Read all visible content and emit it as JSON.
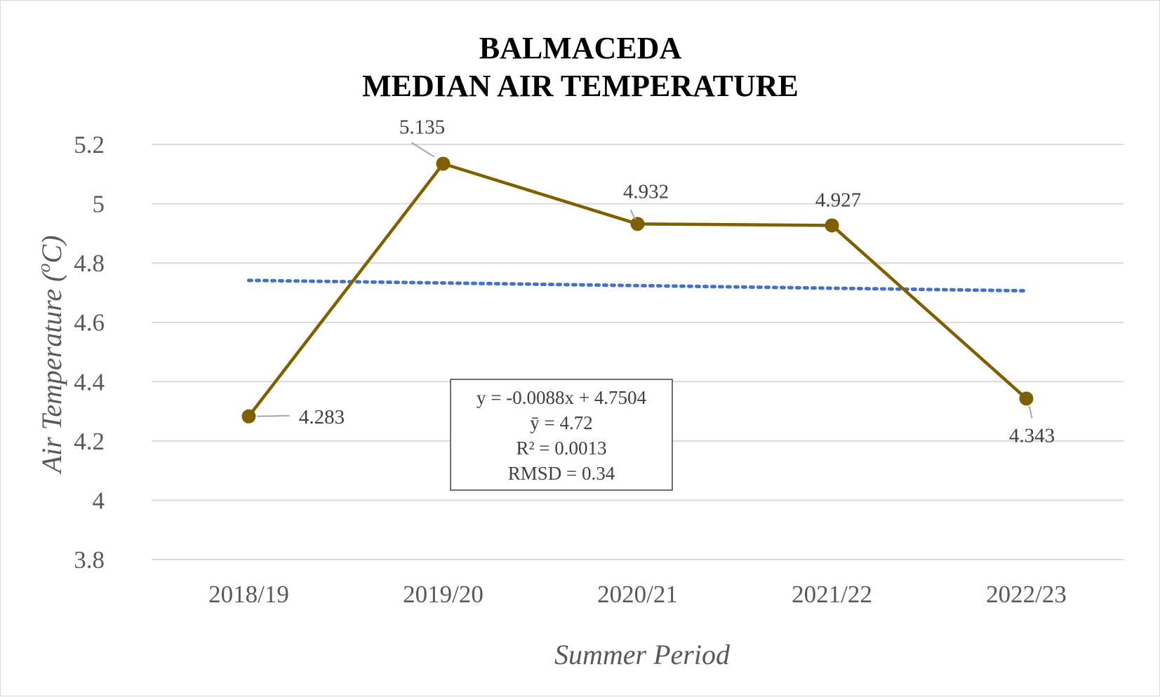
{
  "chart_data": {
    "type": "line",
    "title": "BALMACEDA",
    "subtitle": "MEDIAN AIR TEMPERATURE",
    "xlabel": "Summer Period",
    "ylabel_main": "Air Temperature (",
    "ylabel_sup": "o",
    "ylabel_end": "C)",
    "categories": [
      "2018/19",
      "2019/20",
      "2020/21",
      "2021/22",
      "2022/23"
    ],
    "series": [
      {
        "values": [
          4.283,
          5.135,
          4.932,
          4.927,
          4.343
        ],
        "data_labels": [
          "4.283",
          "5.135",
          "4.932",
          "4.927",
          "4.343"
        ],
        "color": "#7F6000"
      }
    ],
    "trendline": {
      "type": "linear",
      "slope": -0.0088,
      "intercept": 4.7504,
      "style": "dotted",
      "color": "#4472C4"
    },
    "yticks": [
      3.8,
      4,
      4.2,
      4.4,
      4.6,
      4.8,
      5,
      5.2
    ],
    "ytick_labels": [
      "3.8",
      "4",
      "4.2",
      "4.4",
      "4.6",
      "4.8",
      "5",
      "5.2"
    ],
    "ylim": [
      3.8,
      5.2
    ],
    "grid": true,
    "stats_box": {
      "lines": [
        "y = -0.0088x + 4.7504",
        "ȳ = 4.72",
        "R² = 0.0013",
        "RMSD = 0.34"
      ]
    },
    "colors": {
      "gridline": "#d9d9d9",
      "frame_border": "#d9d9d9",
      "leader_line": "#a6a6a6"
    }
  }
}
